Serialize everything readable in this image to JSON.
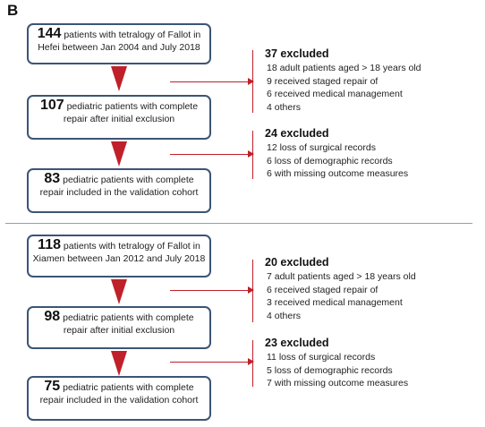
{
  "panel_label": "B",
  "top": {
    "boxes": [
      {
        "num": "144",
        "line1": "patients with tetralogy of Fallot in",
        "line2": "Hefei between Jan 2004 and July 2018"
      },
      {
        "num": "107",
        "line1": "pediatric patients with complete",
        "line2": "repair after initial exclusion"
      },
      {
        "num": "83",
        "line1": "pediatric patients with complete",
        "line2": "repair included in the validation cohort"
      }
    ],
    "exclusions": [
      {
        "head": "37 excluded",
        "items": [
          "18 adult patients aged > 18 years old",
          "9 received staged repair of",
          "6 received medical management",
          "4 others"
        ]
      },
      {
        "head": "24 excluded",
        "items": [
          "12 loss of surgical records",
          "6  loss of demographic records",
          "6 with missing outcome measures"
        ]
      }
    ]
  },
  "bottom": {
    "boxes": [
      {
        "num": "118",
        "line1": "patients with tetralogy of Fallot in",
        "line2": "Xiamen between Jan 2012 and July 2018"
      },
      {
        "num": "98",
        "line1": "pediatric patients with complete",
        "line2": "repair after initial exclusion"
      },
      {
        "num": "75",
        "line1": "pediatric patients with complete",
        "line2": "repair included in the validation cohort"
      }
    ],
    "exclusions": [
      {
        "head": "20 excluded",
        "items": [
          "7 adult patients aged > 18 years old",
          "6 received staged repair of",
          "3 received medical management",
          "4 others"
        ]
      },
      {
        "head": "23 excluded",
        "items": [
          "11 loss of surgical records",
          "5  loss of demographic records",
          "7 with missing outcome measures"
        ]
      }
    ]
  },
  "colors": {
    "box_border": "#3d5573",
    "arrow": "#c0202a",
    "divider": "#8aa0b8"
  }
}
